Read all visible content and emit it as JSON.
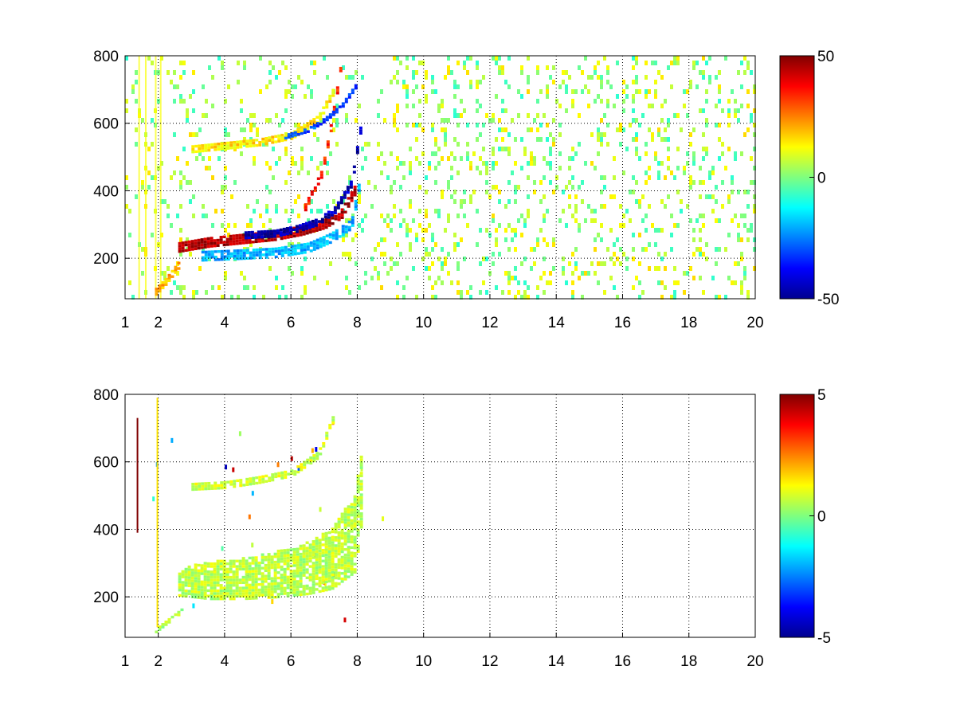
{
  "chart_data": [
    {
      "type": "heatmap",
      "title": "",
      "xlabel": "",
      "ylabel": "",
      "xlim": [
        1,
        20
      ],
      "ylim": [
        80,
        800
      ],
      "xticks": [
        1,
        2,
        4,
        6,
        8,
        10,
        12,
        14,
        16,
        18,
        20
      ],
      "yticks": [
        200,
        400,
        600,
        800
      ],
      "grid": true,
      "colormap": "jet",
      "clim": [
        -50,
        50
      ],
      "colorbar_ticks": [
        -50,
        0,
        50
      ],
      "colorbar_location": "right",
      "features": [
        {
          "kind": "band",
          "x": [
            2.6,
            3.5,
            4.5,
            5.5,
            6.3,
            7.0,
            7.5,
            7.9
          ],
          "y": [
            230,
            245,
            255,
            265,
            280,
            300,
            330,
            400
          ],
          "width": 28,
          "value": 45
        },
        {
          "kind": "band",
          "x": [
            3.3,
            4.5,
            5.5,
            6.5,
            7.2,
            7.8,
            8.1
          ],
          "y": [
            205,
            210,
            215,
            230,
            260,
            300,
            450
          ],
          "width": 30,
          "value": -20
        },
        {
          "kind": "band",
          "x": [
            4.6,
            5.5,
            6.2,
            6.8,
            7.3,
            7.8,
            8.1
          ],
          "y": [
            265,
            270,
            285,
            305,
            340,
            420,
            600
          ],
          "width": 18,
          "value": -45
        },
        {
          "kind": "band",
          "x": [
            6.4,
            6.9,
            7.2,
            7.5
          ],
          "y": [
            350,
            450,
            600,
            780
          ],
          "width": 22,
          "value": 35
        },
        {
          "kind": "band",
          "x": [
            3.0,
            4.0,
            5.0,
            6.0,
            6.8,
            7.3
          ],
          "y": [
            520,
            530,
            540,
            560,
            610,
            700
          ],
          "width": 18,
          "value": 15
        },
        {
          "kind": "band",
          "x": [
            5.8,
            6.5,
            7.0,
            7.5,
            8.0
          ],
          "y": [
            560,
            580,
            610,
            650,
            720
          ],
          "width": 16,
          "value": -30
        },
        {
          "kind": "band",
          "x": [
            1.9,
            2.2,
            2.6
          ],
          "y": [
            100,
            130,
            180
          ],
          "width": 22,
          "value": 20
        }
      ]
    },
    {
      "type": "heatmap",
      "title": "",
      "xlabel": "",
      "ylabel": "",
      "xlim": [
        1,
        20
      ],
      "ylim": [
        80,
        800
      ],
      "xticks": [
        1,
        2,
        4,
        6,
        8,
        10,
        12,
        14,
        16,
        18,
        20
      ],
      "yticks": [
        200,
        400,
        600,
        800
      ],
      "grid": true,
      "colormap": "jet",
      "clim": [
        -5,
        5
      ],
      "colorbar_ticks": [
        -5,
        0,
        5
      ],
      "colorbar_location": "right",
      "features": [
        {
          "kind": "region",
          "x": [
            2.6,
            3.5,
            4.5,
            5.5,
            6.5,
            7.2,
            7.9,
            8.1
          ],
          "ylow": [
            200,
            190,
            190,
            195,
            205,
            220,
            270,
            420
          ],
          "yhigh": [
            280,
            300,
            310,
            330,
            360,
            400,
            500,
            640
          ],
          "value": 0.6
        },
        {
          "kind": "band",
          "x": [
            3.0,
            4.0,
            5.0,
            6.0,
            6.8,
            7.3
          ],
          "y": [
            525,
            530,
            545,
            565,
            620,
            740
          ],
          "width": 22,
          "value": 0.8
        },
        {
          "kind": "band",
          "x": [
            1.9,
            2.3,
            2.7
          ],
          "y": [
            100,
            130,
            160
          ],
          "width": 16,
          "value": 0.5
        }
      ]
    }
  ]
}
